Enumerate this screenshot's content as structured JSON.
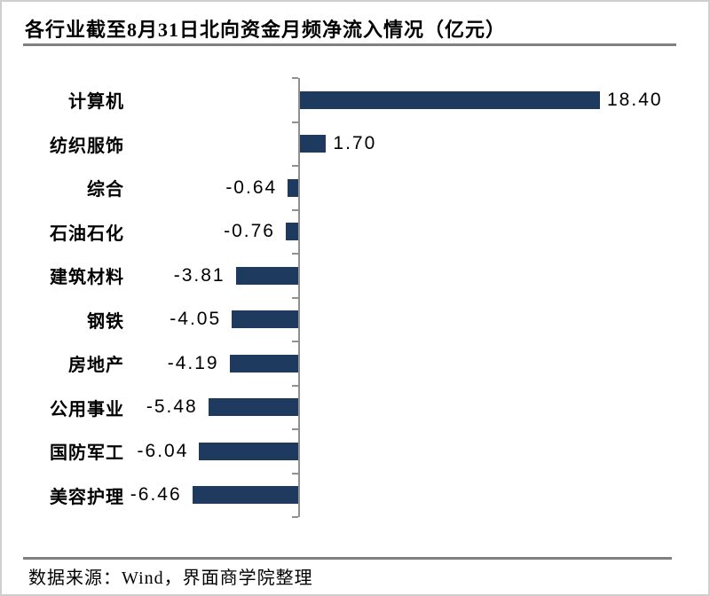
{
  "title": "各行业截至8月31日北向资金月频净流入情况（亿元）",
  "source_note": "数据来源：Wind，界面商学院整理",
  "colors": {
    "bar": "#1f3a5f",
    "axis": "#909090",
    "rule": "#808080",
    "border": "#cfcfcf",
    "text": "#000000",
    "background": "#ffffff"
  },
  "chart_data": {
    "type": "bar",
    "orientation": "horizontal",
    "title": "各行业截至8月31日北向资金月频净流入情况（亿元）",
    "unit": "亿元",
    "categories": [
      "计算机",
      "纺织服饰",
      "综合",
      "石油石化",
      "建筑材料",
      "钢铁",
      "房地产",
      "公用事业",
      "国防军工",
      "美容护理"
    ],
    "values": [
      18.4,
      1.7,
      -0.64,
      -0.76,
      -3.81,
      -4.05,
      -4.19,
      -5.48,
      -6.04,
      -6.46
    ],
    "value_labels": [
      "18.40",
      "1.70",
      "-0.64",
      "-0.76",
      "-3.81",
      "-4.05",
      "-4.19",
      "-5.48",
      "-6.04",
      "-6.46"
    ],
    "xlim_estimate": [
      -7,
      19
    ],
    "grid": false,
    "legend": false,
    "zero_axis_line": true,
    "category_boundary_ticks": true
  }
}
